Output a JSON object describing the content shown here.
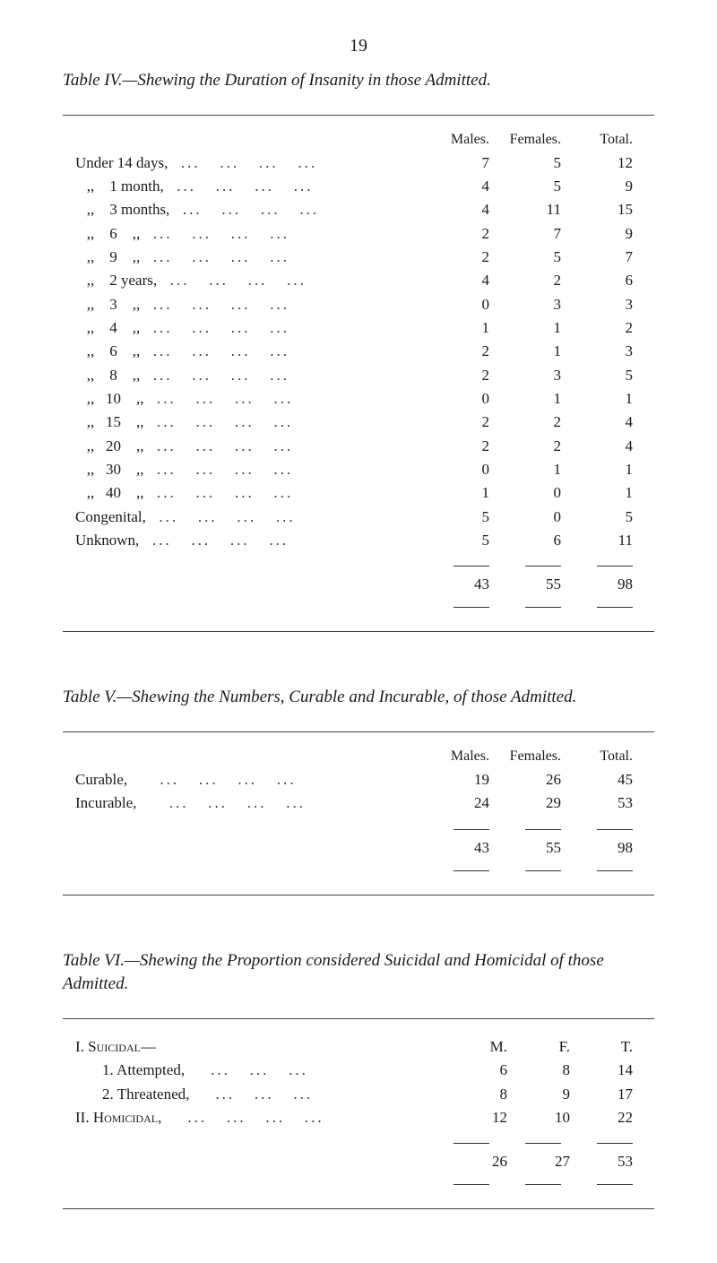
{
  "page_number": "19",
  "table4": {
    "title_prefix": "Table IV.—",
    "title_body": "Shewing the Duration of Insanity in those Admitted.",
    "headers": {
      "males": "Males.",
      "females": "Females.",
      "total": "Total."
    },
    "rows": [
      {
        "label_lead": "Under 14 days,",
        "males": "7",
        "females": "5",
        "total": "12"
      },
      {
        "label_lead": "   ,,    1 month,",
        "males": "4",
        "females": "5",
        "total": "9"
      },
      {
        "label_lead": "   ,,    3 months,",
        "males": "4",
        "females": "11",
        "total": "15"
      },
      {
        "label_lead": "   ,,    6    ,,",
        "males": "2",
        "females": "7",
        "total": "9"
      },
      {
        "label_lead": "   ,,    9    ,,",
        "males": "2",
        "females": "5",
        "total": "7"
      },
      {
        "label_lead": "   ,,    2 years,",
        "males": "4",
        "females": "2",
        "total": "6"
      },
      {
        "label_lead": "   ,,    3    ,,",
        "males": "0",
        "females": "3",
        "total": "3"
      },
      {
        "label_lead": "   ,,    4    ,,",
        "males": "1",
        "females": "1",
        "total": "2"
      },
      {
        "label_lead": "   ,,    6    ,,",
        "males": "2",
        "females": "1",
        "total": "3"
      },
      {
        "label_lead": "   ,,    8    ,,",
        "males": "2",
        "females": "3",
        "total": "5"
      },
      {
        "label_lead": "   ,,   10    ,,",
        "males": "0",
        "females": "1",
        "total": "1"
      },
      {
        "label_lead": "   ,,   15    ,,",
        "males": "2",
        "females": "2",
        "total": "4"
      },
      {
        "label_lead": "   ,,   20    ,,",
        "males": "2",
        "females": "2",
        "total": "4"
      },
      {
        "label_lead": "   ,,   30    ,,",
        "males": "0",
        "females": "1",
        "total": "1"
      },
      {
        "label_lead": "   ,,   40    ,,",
        "males": "1",
        "females": "0",
        "total": "1"
      },
      {
        "label_lead": "Congenital,",
        "males": "5",
        "females": "0",
        "total": "5"
      },
      {
        "label_lead": "Unknown,",
        "males": "5",
        "females": "6",
        "total": "11"
      }
    ],
    "totals": {
      "males": "43",
      "females": "55",
      "total": "98"
    }
  },
  "table5": {
    "title_prefix": "Table V.—",
    "title_body": "Shewing the Numbers, Curable and Incurable, of those Admitted.",
    "headers": {
      "males": "Males.",
      "females": "Females.",
      "total": "Total."
    },
    "rows": [
      {
        "label": "Curable,",
        "males": "19",
        "females": "26",
        "total": "45"
      },
      {
        "label": "Incurable,",
        "males": "24",
        "females": "29",
        "total": "53"
      }
    ],
    "totals": {
      "males": "43",
      "females": "55",
      "total": "98"
    }
  },
  "table6": {
    "title_prefix": "Table VI.—",
    "title_body": "Shewing the Proportion considered Suicidal and Homi­cidal of those Admitted.",
    "headers": {
      "m": "M.",
      "f": "F.",
      "t": "T."
    },
    "section1": "I. Suicidal—",
    "rows1": [
      {
        "label": "1. Attempted,",
        "m": "6",
        "f": "8",
        "t": "14"
      },
      {
        "label": "2. Threatened,",
        "m": "8",
        "f": "9",
        "t": "17"
      }
    ],
    "section2_label": "II. Homicidal,",
    "section2": {
      "m": "12",
      "f": "10",
      "t": "22"
    },
    "totals": {
      "m": "26",
      "f": "27",
      "t": "53"
    }
  }
}
